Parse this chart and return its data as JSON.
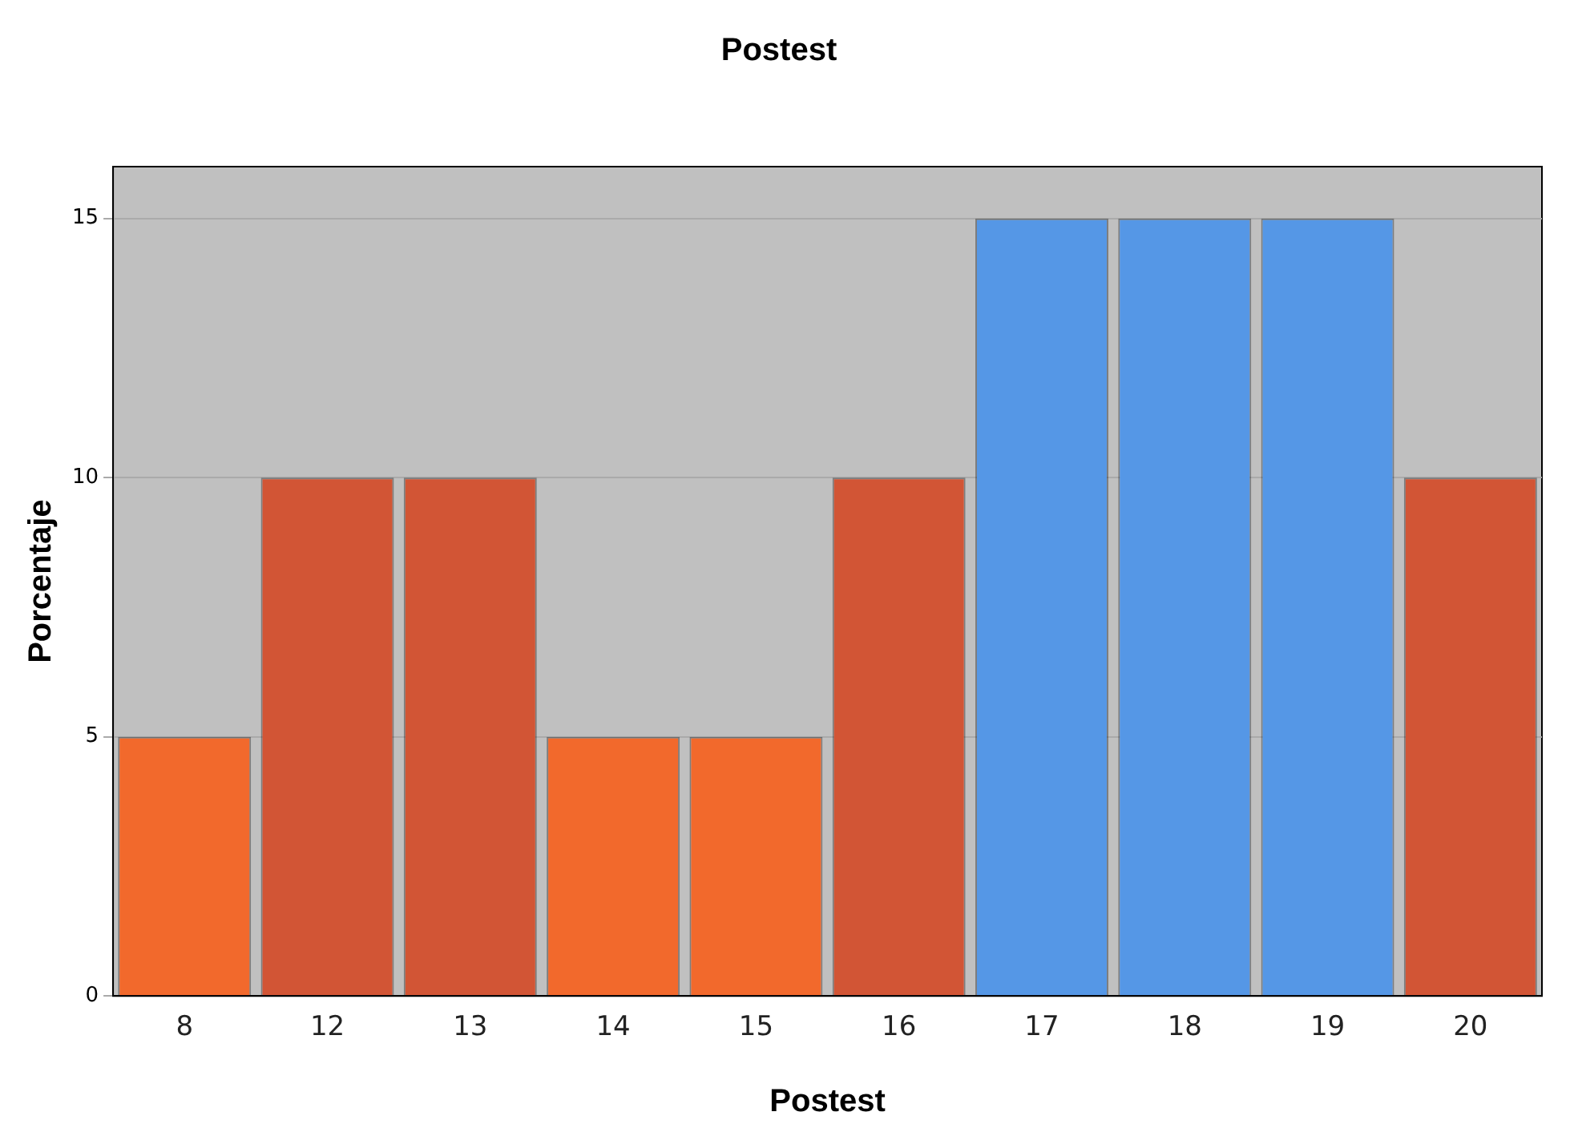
{
  "chart_data": {
    "type": "bar",
    "title": "Postest",
    "xlabel": "Postest",
    "ylabel": "Porcentaje",
    "categories": [
      "8",
      "12",
      "13",
      "14",
      "15",
      "16",
      "17",
      "18",
      "19",
      "20"
    ],
    "values": [
      5,
      10,
      10,
      5,
      5,
      10,
      15,
      15,
      15,
      10
    ],
    "colors": [
      "#f2692c",
      "#d25535",
      "#d25535",
      "#f2692c",
      "#f2692c",
      "#d25535",
      "#5597e6",
      "#5597e6",
      "#5597e6",
      "#d25535"
    ],
    "ylim": [
      0,
      16
    ],
    "yticks": [
      0,
      5,
      10,
      15
    ],
    "grid": "y",
    "legend": false
  }
}
